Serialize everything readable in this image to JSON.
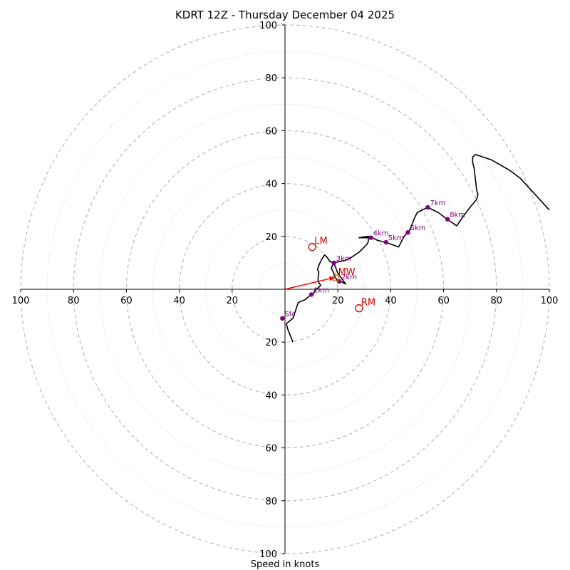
{
  "chart_data": {
    "type": "hodograph",
    "title": "KDRT 12Z - Thursday December 04 2025",
    "xlabel": "Speed in knots",
    "range": [
      -100,
      100
    ],
    "ring_major": [
      20,
      40,
      60,
      80,
      100
    ],
    "ring_minor": [
      10,
      30,
      50,
      70,
      90
    ],
    "tick_labels": [
      "100",
      "80",
      "60",
      "40",
      "20",
      "20",
      "40",
      "60",
      "80",
      "100"
    ],
    "y_tick_labels": [
      "100",
      "80",
      "60",
      "40",
      "20",
      "20",
      "40",
      "60",
      "80",
      "100"
    ],
    "colors": {
      "trace": "#000000",
      "height_marker": "#800080",
      "storm_motion": "#cc0000",
      "bulk_arrow": "#ff0000",
      "ring": "#bbbbbb"
    },
    "trace": [
      [
        3,
        -20
      ],
      [
        1,
        -15
      ],
      [
        0.5,
        -13
      ],
      [
        3,
        -11
      ],
      [
        5,
        -5
      ],
      [
        7.5,
        -4
      ],
      [
        10,
        -2
      ],
      [
        10.8,
        -1.5
      ],
      [
        11.5,
        0
      ],
      [
        12.5,
        0.5
      ],
      [
        13,
        1
      ],
      [
        13.5,
        1.5
      ],
      [
        12.8,
        2.5
      ],
      [
        12.5,
        3.5
      ],
      [
        12.6,
        5
      ],
      [
        12.8,
        6.5
      ],
      [
        12.3,
        7.5
      ],
      [
        13,
        9.5
      ],
      [
        14,
        11.5
      ],
      [
        15,
        13
      ],
      [
        16,
        12
      ],
      [
        17,
        10.5
      ],
      [
        18.5,
        10
      ],
      [
        17.5,
        8
      ],
      [
        18.5,
        6
      ],
      [
        19,
        4.5
      ],
      [
        20,
        3
      ],
      [
        21,
        3
      ],
      [
        23,
        2
      ],
      [
        20,
        6
      ],
      [
        18.5,
        10
      ],
      [
        23,
        11
      ],
      [
        25,
        12
      ],
      [
        28,
        14
      ],
      [
        31,
        17
      ],
      [
        31.5,
        18
      ],
      [
        31.5,
        19
      ],
      [
        33,
        20
      ],
      [
        31,
        20
      ],
      [
        28,
        19.5
      ],
      [
        33,
        19.5
      ],
      [
        35,
        18.5
      ],
      [
        38,
        17.8
      ],
      [
        43,
        16
      ],
      [
        45,
        20
      ],
      [
        47,
        22
      ],
      [
        49,
        27
      ],
      [
        50,
        29
      ],
      [
        54,
        31
      ],
      [
        58,
        29
      ],
      [
        62,
        26
      ],
      [
        65,
        24
      ],
      [
        67,
        27
      ],
      [
        70,
        31
      ],
      [
        72.5,
        34
      ],
      [
        73,
        36
      ],
      [
        72.5,
        37.5
      ],
      [
        72,
        42
      ],
      [
        71.5,
        46
      ],
      [
        71,
        48
      ],
      [
        71,
        50
      ],
      [
        72,
        51
      ],
      [
        78,
        49
      ],
      [
        85,
        45
      ],
      [
        89,
        42
      ],
      [
        100,
        30
      ]
    ],
    "height_markers": [
      {
        "label": "Sfc",
        "u": -1,
        "v": -11
      },
      {
        "label": "1km",
        "u": 10,
        "v": -2
      },
      {
        "label": "2km",
        "u": 20.5,
        "v": 3
      },
      {
        "label": "3km",
        "u": 18.5,
        "v": 10
      },
      {
        "label": "4km",
        "u": 32.5,
        "v": 19.5
      },
      {
        "label": "5km",
        "u": 38.2,
        "v": 17.8
      },
      {
        "label": "6km",
        "u": 46.5,
        "v": 21.5
      },
      {
        "label": "7km",
        "u": 54,
        "v": 31
      },
      {
        "label": "8km",
        "u": 61.5,
        "v": 26.5
      }
    ],
    "storm_motions": [
      {
        "label": "LM",
        "u": 10.3,
        "v": 16
      },
      {
        "label": "RM",
        "u": 28,
        "v": -7.2
      },
      {
        "label": "MW",
        "u": 19.3,
        "v": 4.3
      }
    ],
    "bulk_shear_vector": {
      "u": 19,
      "v": 4.5
    }
  }
}
